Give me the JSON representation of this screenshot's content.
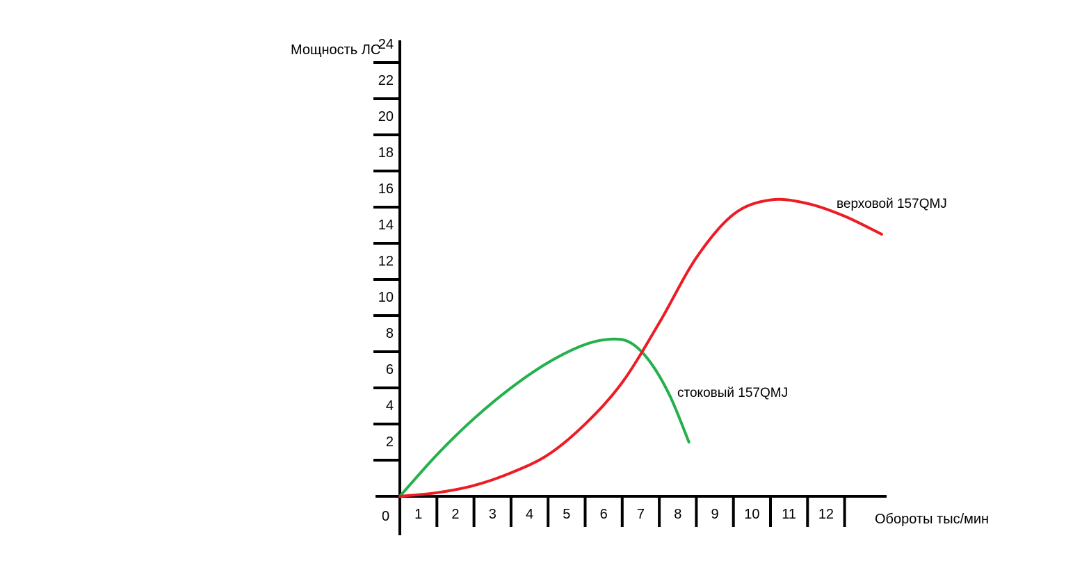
{
  "chart_data": {
    "type": "line",
    "title": "",
    "ylabel": "Мощность ЛС",
    "xlabel": "Обороты тыс/мин",
    "origin_label": "0",
    "x_ticks": [
      {
        "value": 1,
        "label": "1"
      },
      {
        "value": 2,
        "label": "2"
      },
      {
        "value": 3,
        "label": "3"
      },
      {
        "value": 4,
        "label": "4"
      },
      {
        "value": 5,
        "label": "5"
      },
      {
        "value": 6,
        "label": "6"
      },
      {
        "value": 7,
        "label": "7"
      },
      {
        "value": 8,
        "label": "8"
      },
      {
        "value": 9,
        "label": "9"
      },
      {
        "value": 10,
        "label": "10"
      },
      {
        "value": 11,
        "label": "11"
      },
      {
        "value": 12,
        "label": "12"
      }
    ],
    "y_ticks": [
      {
        "value": 2,
        "label": "2"
      },
      {
        "value": 4,
        "label": "4"
      },
      {
        "value": 6,
        "label": "6"
      },
      {
        "value": 8,
        "label": "8"
      },
      {
        "value": 10,
        "label": "10"
      },
      {
        "value": 12,
        "label": "12"
      },
      {
        "value": 14,
        "label": "14"
      },
      {
        "value": 16,
        "label": "16"
      },
      {
        "value": 18,
        "label": "18"
      },
      {
        "value": 20,
        "label": "20"
      },
      {
        "value": 22,
        "label": "22"
      },
      {
        "value": 24,
        "label": "24"
      }
    ],
    "xlim": [
      0,
      13.2
    ],
    "ylim": [
      0,
      26
    ],
    "grid": false,
    "legend": "none",
    "series": [
      {
        "name": "стоковый 157QMJ",
        "color": "#22b14c",
        "x": [
          0,
          1,
          2,
          3,
          4,
          5,
          5.8,
          6.3,
          6.8,
          7.3,
          7.8
        ],
        "y": [
          0,
          2.3,
          4.3,
          6.0,
          7.4,
          8.4,
          8.7,
          8.4,
          7.3,
          5.5,
          3.0
        ]
      },
      {
        "name": "верховой 157QMJ",
        "color": "#ed1c24",
        "x": [
          0,
          1,
          2,
          3,
          4,
          5,
          6,
          7,
          8,
          9,
          10,
          11,
          12,
          13
        ],
        "y": [
          0,
          0.2,
          0.6,
          1.3,
          2.3,
          4.0,
          6.3,
          9.6,
          13.2,
          15.6,
          16.4,
          16.2,
          15.5,
          14.5
        ]
      }
    ]
  }
}
